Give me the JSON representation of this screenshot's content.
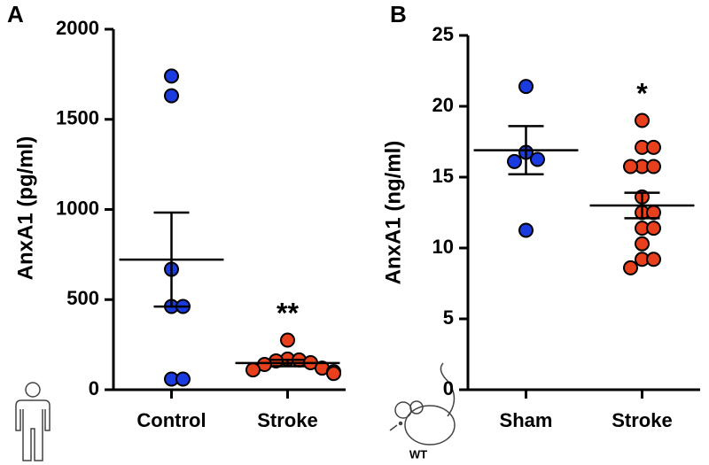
{
  "chart_data": [
    {
      "type": "dotplot",
      "panel_label": "A",
      "ylabel": "AnxA1 (pg/ml)",
      "categories": [
        "Control",
        "Stroke"
      ],
      "values": [
        [
          1740,
          1631,
          668,
          462,
          462,
          59,
          59
        ],
        [
          275,
          170,
          165,
          160,
          150,
          140,
          120,
          110,
          100,
          90
        ]
      ],
      "means": [
        722,
        148
      ],
      "sem": [
        261,
        18
      ],
      "colors": [
        "#1a3be0",
        "#e8401c"
      ],
      "significance": [
        null,
        "**"
      ],
      "ylim": [
        0,
        2000
      ],
      "yticks": [
        0,
        500,
        1000,
        1500,
        2000
      ]
    },
    {
      "type": "dotplot",
      "panel_label": "B",
      "ylabel": "AnxA1 (ng/ml)",
      "icon_label": "WT",
      "categories": [
        "Sham",
        "Stroke"
      ],
      "values": [
        [
          21.4,
          16.75,
          16.25,
          16.1,
          11.25
        ],
        [
          19.0,
          17.1,
          17.1,
          15.75,
          15.75,
          15.75,
          13.6,
          12.5,
          12.5,
          11.4,
          11.4,
          10.3,
          9.2,
          9.2,
          8.6
        ]
      ],
      "means": [
        16.9,
        13.0
      ],
      "sem": [
        1.7,
        0.9
      ],
      "colors": [
        "#1a3be0",
        "#e8401c"
      ],
      "significance": [
        null,
        "*"
      ],
      "ylim": [
        0,
        25
      ],
      "yticks": [
        0,
        5,
        10,
        15,
        20,
        25
      ]
    }
  ]
}
